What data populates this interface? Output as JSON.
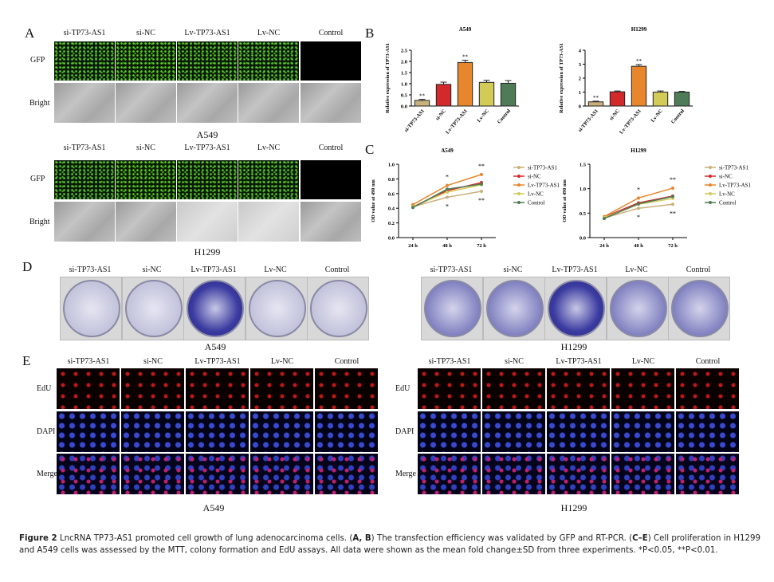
{
  "panel_labels": {
    "a": "A",
    "b": "B",
    "c": "C",
    "d": "D",
    "e": "E"
  },
  "groups": [
    "si-TP73-AS1",
    "si-NC",
    "Lv-TP73-AS1",
    "Lv-NC",
    "Control"
  ],
  "panel_a": {
    "row_labels": [
      "GFP",
      "Bright"
    ],
    "blocks": [
      {
        "cell_line": "A549"
      },
      {
        "cell_line": "H1299"
      }
    ]
  },
  "panel_d": {
    "cell_lines": [
      "A549",
      "H1299"
    ]
  },
  "panel_e": {
    "row_labels": [
      "EdU",
      "DAPI",
      "Merge"
    ],
    "cell_lines": [
      "A549",
      "H1299"
    ]
  },
  "colors": {
    "si-TP73-AS1": "#c9b17c",
    "si-NC": "#d22a2a",
    "Lv-TP73-AS1": "#e7862c",
    "Lv-NC": "#d2cb58",
    "Control": "#4f7b57"
  },
  "chart_data": [
    {
      "type": "bar",
      "title": "A549",
      "ylabel": "Relative expression of TP73-AS1",
      "categories": [
        "si-TP73-AS1",
        "si-NC",
        "Lv-TP73-AS1",
        "Lv-NC",
        "Control"
      ],
      "values": [
        0.25,
        0.97,
        1.95,
        1.06,
        1.02
      ],
      "errors": [
        0.05,
        0.1,
        0.1,
        0.09,
        0.12
      ],
      "significance": [
        "**",
        "",
        "**",
        "",
        ""
      ],
      "ylim": [
        0,
        2.5
      ],
      "yticks": [
        "0.0",
        "0.5",
        "1.0",
        "1.5",
        "2.0",
        "2.5"
      ]
    },
    {
      "type": "bar",
      "title": "H1299",
      "ylabel": "Relative expression of TP73-AS1",
      "categories": [
        "si-TP73-AS1",
        "si-NC",
        "Lv-TP73-AS1",
        "Lv-NC",
        "Control"
      ],
      "values": [
        0.3,
        1.02,
        2.85,
        1.0,
        1.0
      ],
      "errors": [
        0.05,
        0.06,
        0.12,
        0.08,
        0.05
      ],
      "significance": [
        "**",
        "",
        "**",
        "",
        ""
      ],
      "ylim": [
        0,
        4
      ],
      "yticks": [
        "0",
        "1",
        "2",
        "3",
        "4"
      ]
    },
    {
      "type": "line",
      "title": "A549",
      "ylabel": "OD value at 490 nm",
      "x": [
        "24 h",
        "48 h",
        "72 h"
      ],
      "ylim": [
        0,
        1.0
      ],
      "yticks": [
        "0.0",
        "0.2",
        "0.4",
        "0.6",
        "0.8",
        "1.0"
      ],
      "legend": "right",
      "series": [
        {
          "name": "si-TP73-AS1",
          "values": [
            0.42,
            0.55,
            0.63
          ]
        },
        {
          "name": "si-NC",
          "values": [
            0.42,
            0.64,
            0.75
          ]
        },
        {
          "name": "Lv-TP73-AS1",
          "values": [
            0.45,
            0.71,
            0.86
          ]
        },
        {
          "name": "Lv-NC",
          "values": [
            0.42,
            0.62,
            0.72
          ]
        },
        {
          "name": "Control",
          "values": [
            0.41,
            0.66,
            0.73
          ]
        }
      ],
      "annotations": [
        {
          "x": "48 h",
          "above": "*",
          "below": "*"
        },
        {
          "x": "72 h",
          "above": "**",
          "below": "**"
        }
      ]
    },
    {
      "type": "line",
      "title": "H1299",
      "ylabel": "OD value at 490 nm",
      "x": [
        "24 h",
        "48 h",
        "72 h"
      ],
      "ylim": [
        0,
        1.5
      ],
      "yticks": [
        "0.0",
        "0.5",
        "1.0",
        "1.5"
      ],
      "legend": "right",
      "series": [
        {
          "name": "si-TP73-AS1",
          "values": [
            0.4,
            0.6,
            0.68
          ]
        },
        {
          "name": "si-NC",
          "values": [
            0.42,
            0.71,
            0.85
          ]
        },
        {
          "name": "Lv-TP73-AS1",
          "values": [
            0.43,
            0.81,
            1.01
          ]
        },
        {
          "name": "Lv-NC",
          "values": [
            0.41,
            0.68,
            0.8
          ]
        },
        {
          "name": "Control",
          "values": [
            0.39,
            0.69,
            0.84
          ]
        }
      ],
      "annotations": [
        {
          "x": "48 h",
          "above": "*",
          "below": "*"
        },
        {
          "x": "72 h",
          "above": "**",
          "below": "**"
        }
      ]
    }
  ],
  "caption": {
    "fig": "Figure 2",
    "p1": " LncRNA TP73-AS1 promoted cell growth of lung adenocarcinoma cells. (",
    "ab": "A, B",
    "p2": ") The transfection efficiency was validated by GFP and RT-PCR. (",
    "ce": "C–E",
    "p3": ") Cell proliferation in H1299 and A549 cells was assessed by the MTT, colony formation and EdU assays. All data were shown as the mean fold change±SD from three experiments. *P<0.05, **P<0.01."
  }
}
